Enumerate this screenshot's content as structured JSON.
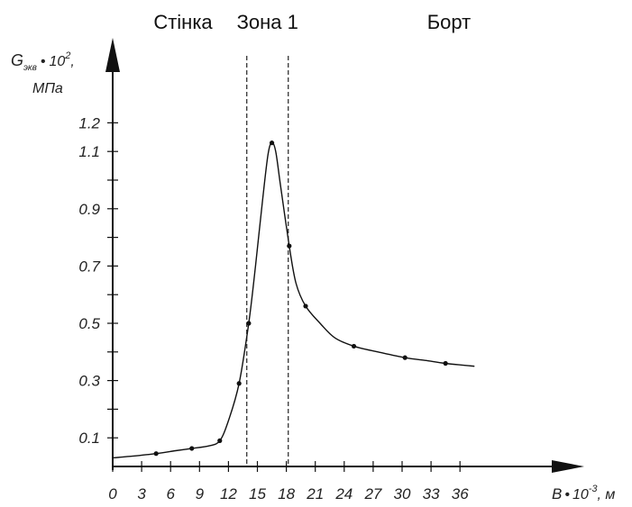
{
  "chart_data": {
    "type": "line",
    "zones": [
      "Стінка",
      "Зона 1",
      "Борт"
    ],
    "zone_boundaries": [
      13.9,
      18.2
    ],
    "ylabel": {
      "main": "G",
      "sub": "экв",
      "dot": "•",
      "pow": "10",
      "exp": "2",
      "comma": ",",
      "unit": "МПа"
    },
    "xlabel": {
      "main": "B",
      "dot": "•",
      "pow": "10",
      "exp": "-3",
      "unit": ", м"
    },
    "x_ticks": [
      "0",
      "3",
      "6",
      "9",
      "12",
      "15",
      "18",
      "21",
      "24",
      "27",
      "30",
      "33",
      "36"
    ],
    "x_tick_values": [
      0,
      3,
      6,
      9,
      12,
      15,
      18,
      21,
      24,
      27,
      30,
      33,
      36
    ],
    "y_tick_values": [
      0.1,
      0.2,
      0.3,
      0.4,
      0.5,
      0.6,
      0.7,
      0.8,
      0.9,
      1.0,
      1.1,
      1.2
    ],
    "y_tick_labels": [
      "0.1",
      "",
      "0.3",
      "",
      "0.5",
      "",
      "0.7",
      "",
      "0.9",
      "",
      "1.1",
      "1.2"
    ],
    "xlim": [
      0,
      39
    ],
    "ylim": [
      0,
      1.35
    ],
    "grid": false,
    "series": [
      {
        "points": [
          {
            "x": 4.5,
            "y": 0.045
          },
          {
            "x": 8.2,
            "y": 0.063
          },
          {
            "x": 11.1,
            "y": 0.09
          },
          {
            "x": 13.1,
            "y": 0.29
          },
          {
            "x": 14.1,
            "y": 0.5
          },
          {
            "x": 16.5,
            "y": 1.13
          },
          {
            "x": 18.3,
            "y": 0.77
          },
          {
            "x": 20.0,
            "y": 0.56
          },
          {
            "x": 25.0,
            "y": 0.42
          },
          {
            "x": 30.3,
            "y": 0.38
          },
          {
            "x": 34.5,
            "y": 0.36
          }
        ],
        "curve": [
          [
            0.0,
            0.03
          ],
          [
            2.0,
            0.036
          ],
          [
            4.5,
            0.045
          ],
          [
            6.5,
            0.055
          ],
          [
            8.2,
            0.063
          ],
          [
            10.0,
            0.072
          ],
          [
            11.1,
            0.09
          ],
          [
            12.0,
            0.16
          ],
          [
            13.1,
            0.29
          ],
          [
            14.1,
            0.5
          ],
          [
            14.8,
            0.7
          ],
          [
            15.5,
            0.92
          ],
          [
            16.1,
            1.09
          ],
          [
            16.5,
            1.13
          ],
          [
            16.9,
            1.1
          ],
          [
            17.4,
            0.98
          ],
          [
            18.3,
            0.77
          ],
          [
            19.0,
            0.64
          ],
          [
            20.0,
            0.56
          ],
          [
            21.5,
            0.5
          ],
          [
            23.0,
            0.45
          ],
          [
            25.0,
            0.42
          ],
          [
            27.5,
            0.4
          ],
          [
            30.3,
            0.38
          ],
          [
            32.5,
            0.37
          ],
          [
            34.5,
            0.36
          ],
          [
            37.5,
            0.35
          ]
        ]
      }
    ]
  }
}
